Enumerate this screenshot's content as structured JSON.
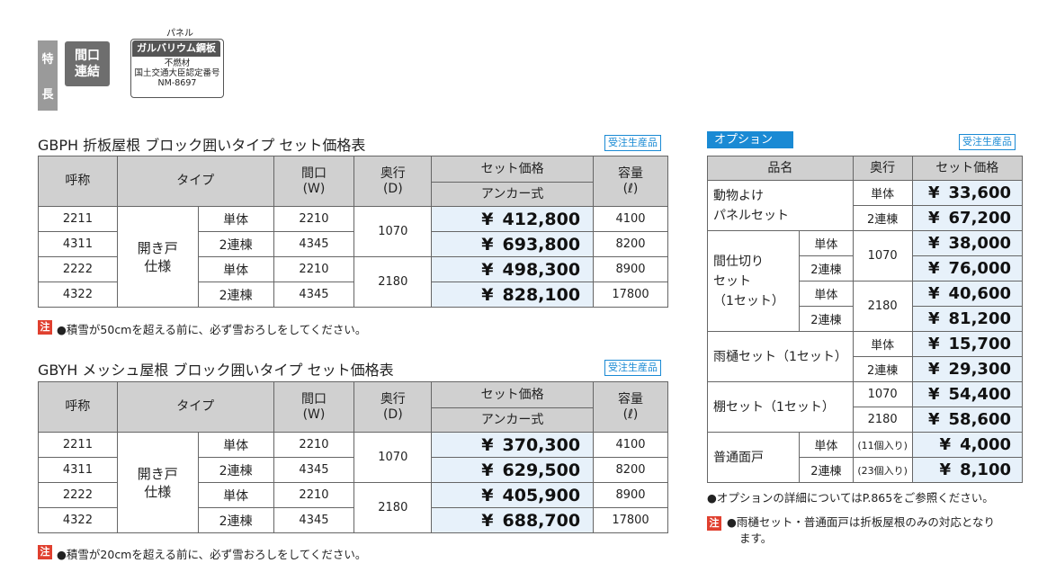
{
  "header": {
    "feature_tab": [
      "特",
      "長"
    ],
    "maguchi_badge": [
      "間口",
      "連結"
    ],
    "panel_caption": "パネル",
    "panel_label": "ガルバリウム鋼板",
    "panel_lines": [
      "不燃材",
      "国土交通大臣認定番号",
      "NM-8697"
    ]
  },
  "made_to_order": "受注生産品",
  "table1": {
    "title": "GBPH 折板屋根 ブロック囲いタイプ セット価格表",
    "headers": {
      "name": "呼称",
      "type": "タイプ",
      "width": "間口",
      "width_unit": "(W)",
      "depth": "奥行",
      "depth_unit": "(D)",
      "price": "セット価格",
      "anchor": "アンカー式",
      "capacity": "容量",
      "capacity_unit": "(ℓ)"
    },
    "type_group": [
      "開き戸",
      "仕様"
    ],
    "rows": [
      {
        "name": "2211",
        "sub": "単体",
        "w": "2210",
        "d": "1070",
        "yen": "¥",
        "price": "412,800",
        "cap": "4100"
      },
      {
        "name": "4311",
        "sub": "2連棟",
        "w": "4345",
        "d": "",
        "yen": "¥",
        "price": "693,800",
        "cap": "8200"
      },
      {
        "name": "2222",
        "sub": "単体",
        "w": "2210",
        "d": "2180",
        "yen": "¥",
        "price": "498,300",
        "cap": "8900"
      },
      {
        "name": "4322",
        "sub": "2連棟",
        "w": "4345",
        "d": "",
        "yen": "¥",
        "price": "828,100",
        "cap": "17800"
      }
    ],
    "note_mark": "注",
    "note": "●積雪が50cmを超える前に、必ず雪おろしをしてください。"
  },
  "table2": {
    "title": "GBYH メッシュ屋根 ブロック囲いタイプ セット価格表",
    "headers": {
      "name": "呼称",
      "type": "タイプ",
      "width": "間口",
      "width_unit": "(W)",
      "depth": "奥行",
      "depth_unit": "(D)",
      "price": "セット価格",
      "anchor": "アンカー式",
      "capacity": "容量",
      "capacity_unit": "(ℓ)"
    },
    "type_group": [
      "開き戸",
      "仕様"
    ],
    "rows": [
      {
        "name": "2211",
        "sub": "単体",
        "w": "2210",
        "d": "1070",
        "yen": "¥",
        "price": "370,300",
        "cap": "4100"
      },
      {
        "name": "4311",
        "sub": "2連棟",
        "w": "4345",
        "d": "",
        "yen": "¥",
        "price": "629,500",
        "cap": "8200"
      },
      {
        "name": "2222",
        "sub": "単体",
        "w": "2210",
        "d": "2180",
        "yen": "¥",
        "price": "405,900",
        "cap": "8900"
      },
      {
        "name": "4322",
        "sub": "2連棟",
        "w": "4345",
        "d": "",
        "yen": "¥",
        "price": "688,700",
        "cap": "17800"
      }
    ],
    "note_mark": "注",
    "note": "●積雪が20cmを超える前に、必ず雪おろしをしてください。"
  },
  "options": {
    "title": "オプション",
    "headers": {
      "name": "品名",
      "depth": "奥行",
      "price": "セット価格"
    },
    "yen": "¥",
    "animal": {
      "name": [
        "動物よけ",
        "パネルセット"
      ],
      "rows": [
        {
          "sub": "単体",
          "price": "33,600"
        },
        {
          "sub": "2連棟",
          "price": "67,200"
        }
      ]
    },
    "partition": {
      "name": [
        "間仕切り",
        "セット",
        "（1セット）"
      ],
      "rows": [
        {
          "sub": "単体",
          "d": "1070",
          "price": "38,000"
        },
        {
          "sub": "2連棟",
          "d": "",
          "price": "76,000"
        },
        {
          "sub": "単体",
          "d": "2180",
          "price": "40,600"
        },
        {
          "sub": "2連棟",
          "d": "",
          "price": "81,200"
        }
      ]
    },
    "gutter": {
      "name": "雨樋セット（1セット）",
      "rows": [
        {
          "sub": "単体",
          "price": "15,700"
        },
        {
          "sub": "2連棟",
          "price": "29,300"
        }
      ]
    },
    "shelf": {
      "name": "棚セット（1セット）",
      "rows": [
        {
          "sub": "1070",
          "price": "54,400"
        },
        {
          "sub": "2180",
          "price": "58,600"
        }
      ]
    },
    "face": {
      "name": "普通面戸",
      "rows": [
        {
          "sub": "単体",
          "qty": "(11個入り)",
          "price": "4,000"
        },
        {
          "sub": "2連棟",
          "qty": "(23個入り)",
          "price": "8,100"
        }
      ]
    },
    "detail_note": "●オプションの詳細についてはP.865をご参照ください。",
    "note_mark": "注",
    "note_lines": [
      "●雨樋セット・普通面戸は折板屋根のみの対応となり",
      "ます。"
    ]
  }
}
